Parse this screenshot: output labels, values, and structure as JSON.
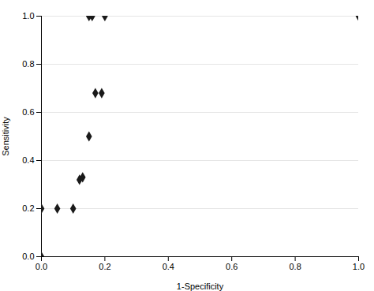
{
  "chart_data": {
    "type": "scatter",
    "x": [
      0.0,
      0.0,
      0.05,
      0.1,
      0.12,
      0.13,
      0.15,
      0.17,
      0.19,
      0.15,
      0.16,
      0.2,
      1.0
    ],
    "values": [
      0.0,
      0.2,
      0.2,
      0.2,
      0.32,
      0.33,
      0.5,
      0.68,
      0.68,
      1.0,
      1.0,
      1.0,
      1.0
    ],
    "x_label": "1-Specificity",
    "y_label": "Sensitivity",
    "xlim": [
      0.0,
      1.0
    ],
    "ylim": [
      0.0,
      1.0
    ],
    "xticks": [
      {
        "value": 0.0,
        "label": "0.0"
      },
      0.2,
      0.4,
      0.6,
      0.8,
      {
        "value": 1.0,
        "label": "1.0"
      }
    ],
    "yticks": [
      {
        "value": 0.0,
        "label": "0.0"
      },
      0.2,
      0.4,
      0.6,
      0.8,
      {
        "value": 1.0,
        "label": "1.0"
      }
    ],
    "marker": "diamond",
    "color": "#1a1a1a",
    "grid": "y"
  }
}
